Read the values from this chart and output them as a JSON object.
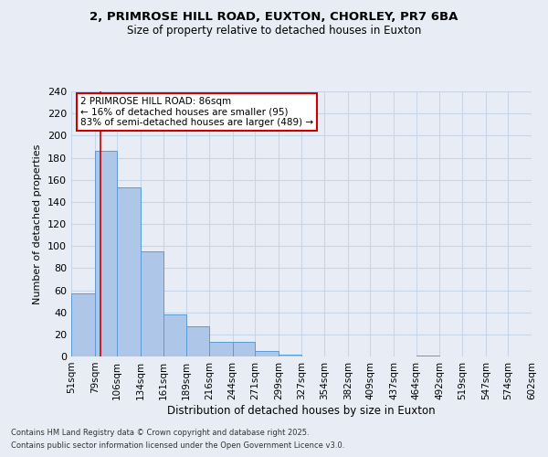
{
  "title_line1": "2, PRIMROSE HILL ROAD, EUXTON, CHORLEY, PR7 6BA",
  "title_line2": "Size of property relative to detached houses in Euxton",
  "xlabel": "Distribution of detached houses by size in Euxton",
  "ylabel": "Number of detached properties",
  "bar_edges": [
    51,
    79,
    106,
    134,
    161,
    189,
    216,
    244,
    271,
    299,
    327,
    354,
    382,
    409,
    437,
    464,
    492,
    519,
    547,
    574,
    602
  ],
  "bar_heights": [
    57,
    186,
    153,
    95,
    38,
    27,
    13,
    13,
    5,
    2,
    0,
    0,
    0,
    0,
    0,
    1,
    0,
    0,
    0,
    0
  ],
  "bar_color": "#aec6e8",
  "bar_edge_color": "#5b9bd5",
  "grid_color": "#c8d4e8",
  "bg_color": "#e8edf5",
  "property_size": 86,
  "annotation_text": "2 PRIMROSE HILL ROAD: 86sqm\n← 16% of detached houses are smaller (95)\n83% of semi-detached houses are larger (489) →",
  "annotation_box_color": "#ffffff",
  "annotation_border_color": "#cc0000",
  "vline_color": "#cc0000",
  "ylim": [
    0,
    240
  ],
  "yticks": [
    0,
    20,
    40,
    60,
    80,
    100,
    120,
    140,
    160,
    180,
    200,
    220,
    240
  ],
  "footer_line1": "Contains HM Land Registry data © Crown copyright and database right 2025.",
  "footer_line2": "Contains public sector information licensed under the Open Government Licence v3.0."
}
